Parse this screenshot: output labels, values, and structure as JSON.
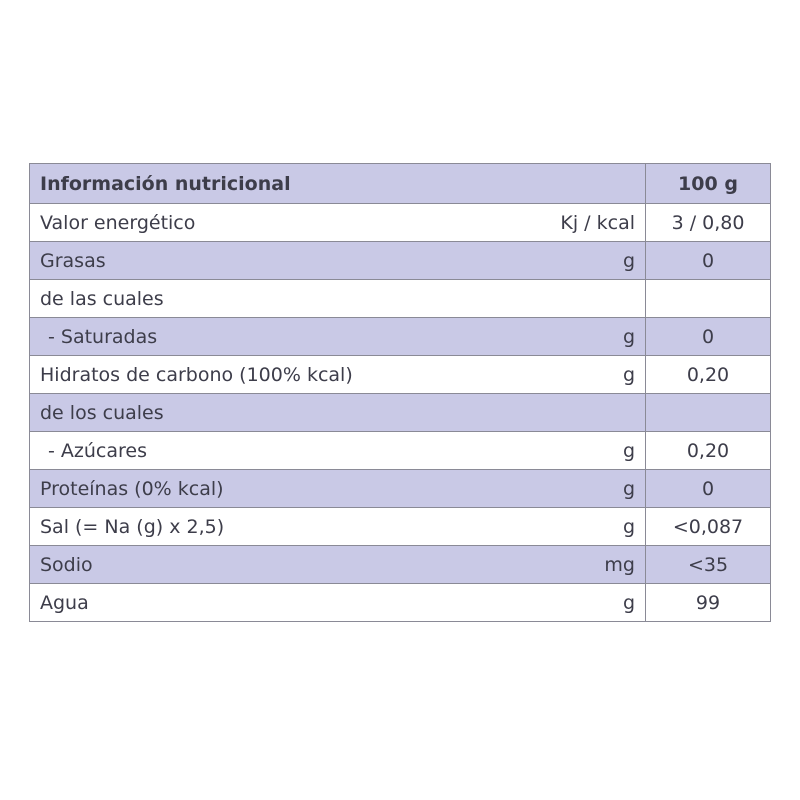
{
  "header": {
    "title": "Información nutricional",
    "column": "100 g"
  },
  "rows": [
    {
      "label": "Valor energético",
      "unit": "Kj / kcal",
      "value": "3 / 0,80",
      "shaded": false,
      "indent": false
    },
    {
      "label": "Grasas",
      "unit": "g",
      "value": "0",
      "shaded": true,
      "indent": false
    },
    {
      "label": "de las cuales",
      "unit": "",
      "value": "",
      "shaded": false,
      "indent": false
    },
    {
      "label": "- Saturadas",
      "unit": "g",
      "value": "0",
      "shaded": true,
      "indent": true
    },
    {
      "label": "Hidratos de carbono (100% kcal)",
      "unit": "g",
      "value": "0,20",
      "shaded": false,
      "indent": false
    },
    {
      "label": "de los cuales",
      "unit": "",
      "value": "",
      "shaded": true,
      "indent": false
    },
    {
      "label": "- Azúcares",
      "unit": "g",
      "value": "0,20",
      "shaded": false,
      "indent": true
    },
    {
      "label": "Proteínas (0% kcal)",
      "unit": "g",
      "value": "0",
      "shaded": true,
      "indent": false
    },
    {
      "label": "Sal (= Na (g) x 2,5)",
      "unit": "g",
      "value": "<0,087",
      "shaded": false,
      "indent": false
    },
    {
      "label": "Sodio",
      "unit": "mg",
      "value": "<35",
      "shaded": true,
      "indent": false
    },
    {
      "label": "Agua",
      "unit": "g",
      "value": "99",
      "shaded": false,
      "indent": false
    }
  ],
  "colors": {
    "shade": "#c9c9e6",
    "text": "#3d3d4a",
    "border": "#8a8a96"
  }
}
